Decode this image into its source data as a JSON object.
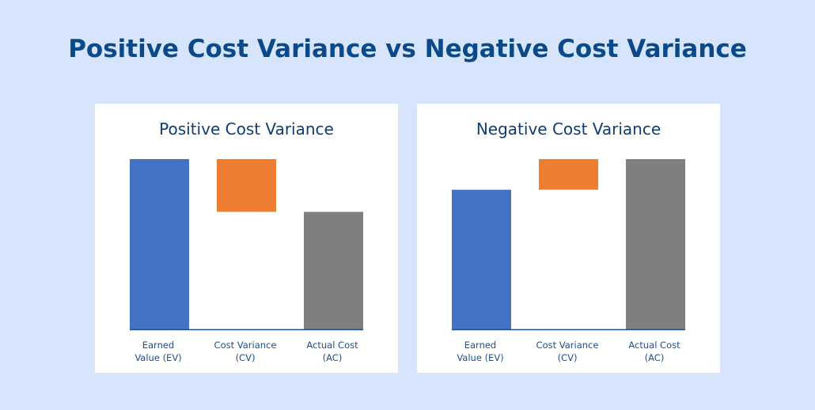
{
  "title": "Positive Cost Variance vs Negative Cost Variance",
  "colors": {
    "ev": "#4472c4",
    "cv": "#ed7d31",
    "ac": "#7f7f7f",
    "axis": "#1f4e8c"
  },
  "chart_data": [
    {
      "type": "bar",
      "title": "Positive Cost Variance",
      "categories": [
        [
          "Earned",
          "Value (EV)"
        ],
        [
          "Cost Variance",
          "(CV)"
        ],
        [
          "Actual Cost",
          "(AC)"
        ]
      ],
      "bars": [
        {
          "name": "Earned Value (EV)",
          "start": 0,
          "end": 100,
          "color": "#4472c4"
        },
        {
          "name": "Cost Variance (CV)",
          "start": 69,
          "end": 100,
          "color": "#ed7d31"
        },
        {
          "name": "Actual Cost (AC)",
          "start": 0,
          "end": 69,
          "color": "#7f7f7f"
        }
      ],
      "ylim": [
        0,
        100
      ],
      "grid": false,
      "legend": "none"
    },
    {
      "type": "bar",
      "title": "Negative Cost Variance",
      "categories": [
        [
          "Earned",
          "Value (EV)"
        ],
        [
          "Cost Variance",
          "(CV)"
        ],
        [
          "Actual Cost",
          "(AC)"
        ]
      ],
      "bars": [
        {
          "name": "Earned Value (EV)",
          "start": 0,
          "end": 82,
          "color": "#4472c4"
        },
        {
          "name": "Cost Variance (CV)",
          "start": 82,
          "end": 100,
          "color": "#ed7d31"
        },
        {
          "name": "Actual Cost (AC)",
          "start": 0,
          "end": 100,
          "color": "#7f7f7f"
        }
      ],
      "ylim": [
        0,
        100
      ],
      "grid": false,
      "legend": "none"
    }
  ]
}
